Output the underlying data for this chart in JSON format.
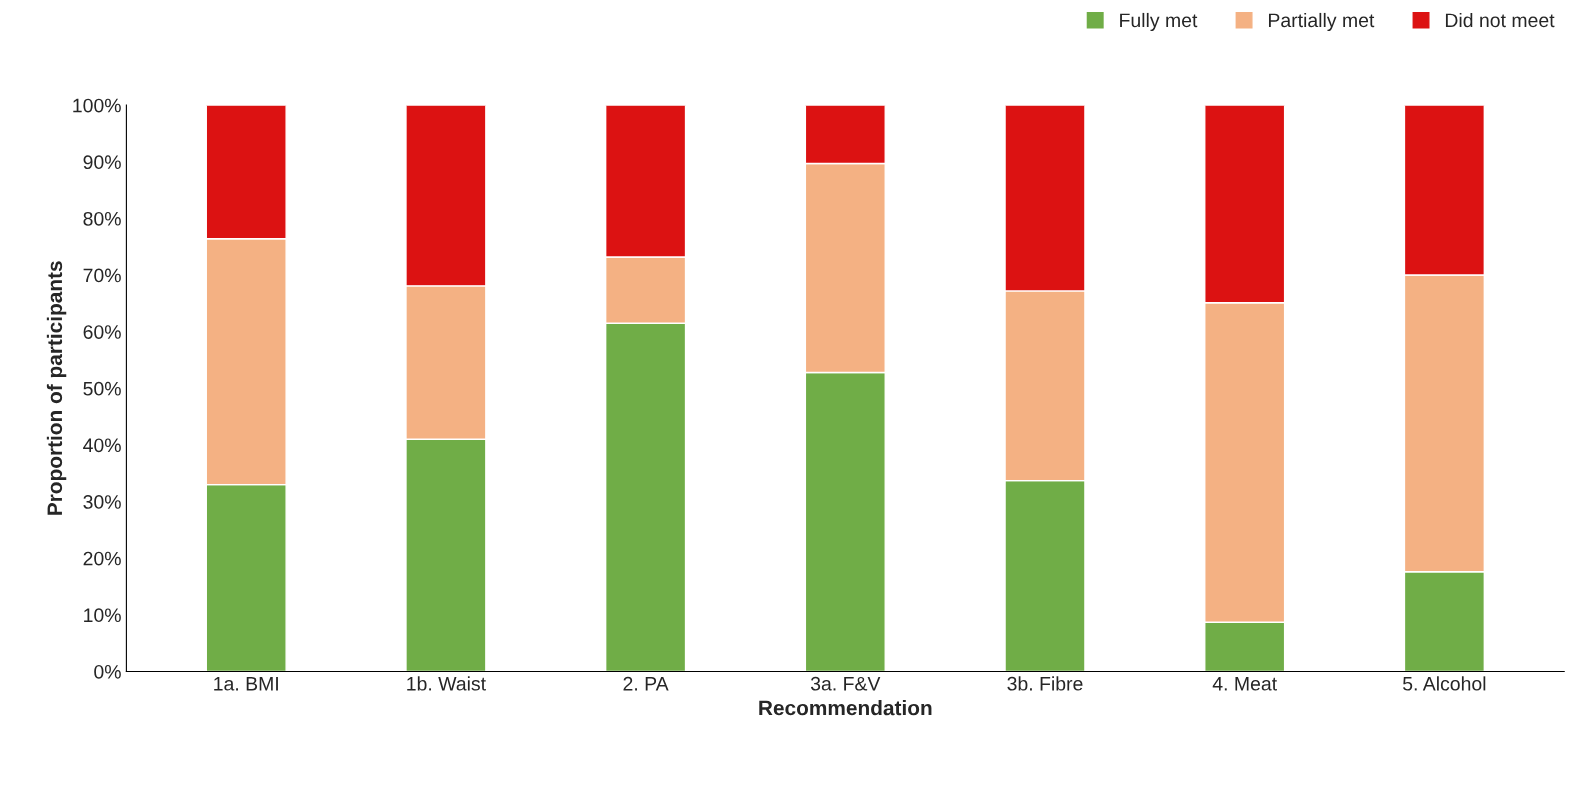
{
  "chart_data": {
    "type": "bar",
    "stacked": true,
    "xlabel": "Recommendation",
    "ylabel": "Proportion of participants",
    "categories": [
      "1a. BMI",
      "1b. Waist",
      "2. PA",
      "3a. F&V",
      "3b. Fibre",
      "4. Meat",
      "5. Alcohol"
    ],
    "series": [
      {
        "name": "Fully met",
        "color": "#70ad47",
        "values": [
          33.0,
          41.0,
          61.5,
          52.8,
          33.7,
          8.7,
          17.6
        ]
      },
      {
        "name": "Partially met",
        "color": "#f4b183",
        "values": [
          43.4,
          27.1,
          11.7,
          36.9,
          33.5,
          56.4,
          52.4
        ]
      },
      {
        "name": "Did not meet",
        "color": "#dc1212",
        "values": [
          23.6,
          31.9,
          26.8,
          10.3,
          32.8,
          34.9,
          30.0
        ]
      }
    ],
    "ylim": [
      0,
      100
    ],
    "yticks": [
      {
        "value": 0,
        "label": "0%"
      },
      {
        "value": 10,
        "label": "10%"
      },
      {
        "value": 20,
        "label": "20%"
      },
      {
        "value": 30,
        "label": "30%"
      },
      {
        "value": 40,
        "label": "40%"
      },
      {
        "value": 50,
        "label": "50%"
      },
      {
        "value": 60,
        "label": "60%"
      },
      {
        "value": 70,
        "label": "70%"
      },
      {
        "value": 80,
        "label": "80%"
      },
      {
        "value": 90,
        "label": "90%"
      },
      {
        "value": 100,
        "label": "100%"
      }
    ],
    "grid": false,
    "legend": "top right"
  }
}
